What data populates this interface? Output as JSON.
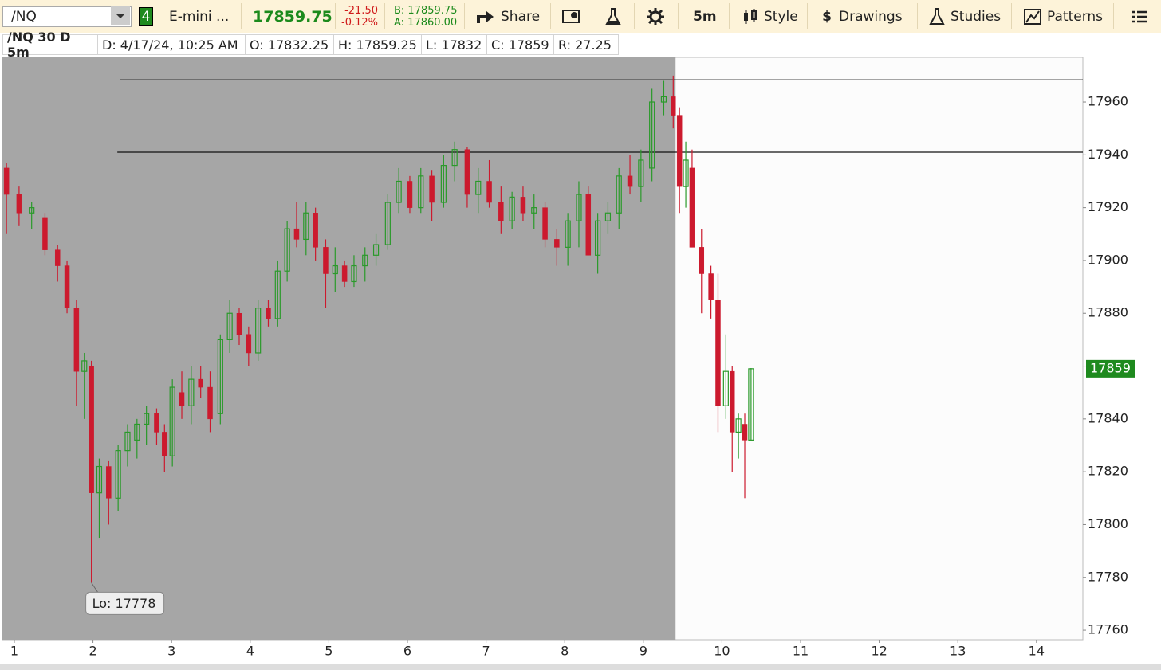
{
  "toolbar": {
    "symbol": "/NQ",
    "link_group": "4",
    "description": "E-mini ...",
    "last": "17859.75",
    "change": "-21.50",
    "change_pct": "-0.12%",
    "bid": "B: 17859.75",
    "ask": "A: 17860.00",
    "share": "Share",
    "timeframe": "5m",
    "style": "Style",
    "drawings": "Drawings",
    "studies": "Studies",
    "patterns": "Patterns"
  },
  "infobar": {
    "chart_name": "/NQ 30 D 5m",
    "date": "D: 4/17/24, 10:25 AM",
    "open": "O: 17832.25",
    "high": "H: 17859.25",
    "low": "L: 17832",
    "close": "C: 17859",
    "range": "R: 27.25"
  },
  "chart_data": {
    "type": "candlestick",
    "up_color": "#2a9a2a",
    "down_color": "#cc1a2e",
    "x": [
      0.9,
      1.06,
      1.22,
      1.39,
      1.55,
      1.67,
      1.79,
      1.89,
      1.98,
      2.08,
      2.2,
      2.32,
      2.44,
      2.56,
      2.68,
      2.81,
      2.91,
      3.01,
      3.13,
      3.25,
      3.37,
      3.49,
      3.62,
      3.74,
      3.86,
      3.98,
      4.1,
      4.23,
      4.35,
      4.47,
      4.59,
      4.71,
      4.83,
      4.96,
      5.08,
      5.2,
      5.32,
      5.46,
      5.6,
      5.75,
      5.89,
      6.03,
      6.17,
      6.31,
      6.46,
      6.6,
      6.76,
      6.9,
      7.04,
      7.19,
      7.33,
      7.47,
      7.61,
      7.75,
      7.9,
      8.04,
      8.18,
      8.3,
      8.42,
      8.55,
      8.69,
      8.83,
      8.97,
      9.11,
      9.26,
      9.38,
      9.46,
      9.54,
      9.62,
      9.74,
      9.86,
      9.95,
      10.05,
      10.13,
      10.21,
      10.29,
      10.37
    ],
    "open": [
      17935,
      17925,
      17918,
      17916,
      17904,
      17898,
      17882,
      17858,
      17860,
      17812,
      17822,
      17810,
      17828,
      17832,
      17838,
      17842,
      17835,
      17826,
      17850,
      17845,
      17855,
      17852,
      17842,
      17870,
      17880,
      17872,
      17865,
      17882,
      17878,
      17896,
      17912,
      17908,
      17918,
      17905,
      17895,
      17898,
      17892,
      17898,
      17902,
      17906,
      17922,
      17930,
      17920,
      17932,
      17922,
      17936,
      17942,
      17925,
      17930,
      17922,
      17915,
      17924,
      17918,
      17920,
      17908,
      17905,
      17915,
      17925,
      17902,
      17915,
      17918,
      17932,
      17928,
      17935,
      17960,
      17962,
      17955,
      17928,
      17935,
      17905,
      17895,
      17885,
      17845,
      17858,
      17835,
      17838,
      17832
    ],
    "high": [
      17937,
      17928,
      17922,
      17918,
      17906,
      17900,
      17885,
      17865,
      17862,
      17825,
      17824,
      17830,
      17838,
      17840,
      17845,
      17844,
      17838,
      17855,
      17858,
      17860,
      17860,
      17858,
      17872,
      17885,
      17882,
      17875,
      17885,
      17885,
      17900,
      17915,
      17922,
      17922,
      17920,
      17908,
      17905,
      17900,
      17902,
      17905,
      17910,
      17925,
      17935,
      17932,
      17935,
      17934,
      17940,
      17945,
      17943,
      17935,
      17938,
      17928,
      17926,
      17928,
      17925,
      17922,
      17912,
      17918,
      17930,
      17928,
      17918,
      17922,
      17935,
      17940,
      17942,
      17965,
      17968,
      17970,
      17958,
      17945,
      17942,
      17912,
      17898,
      17895,
      17872,
      17860,
      17842,
      17842,
      17859.25
    ],
    "low": [
      17910,
      17913,
      17912,
      17902,
      17892,
      17880,
      17845,
      17840,
      17778,
      17795,
      17800,
      17805,
      17822,
      17825,
      17830,
      17830,
      17820,
      17822,
      17840,
      17838,
      17848,
      17835,
      17838,
      17865,
      17868,
      17860,
      17862,
      17875,
      17875,
      17892,
      17905,
      17902,
      17900,
      17882,
      17888,
      17890,
      17890,
      17892,
      17898,
      17904,
      17918,
      17918,
      17918,
      17915,
      17920,
      17930,
      17920,
      17918,
      17920,
      17910,
      17912,
      17915,
      17912,
      17905,
      17898,
      17898,
      17905,
      17902,
      17895,
      17910,
      17912,
      17925,
      17922,
      17930,
      17955,
      17950,
      17918,
      17920,
      17905,
      17880,
      17878,
      17835,
      17840,
      17820,
      17825,
      17810,
      17832
    ],
    "close": [
      17925,
      17918,
      17920,
      17904,
      17898,
      17882,
      17858,
      17862,
      17812,
      17822,
      17810,
      17828,
      17835,
      17838,
      17842,
      17835,
      17826,
      17852,
      17845,
      17855,
      17852,
      17840,
      17870,
      17880,
      17872,
      17865,
      17882,
      17878,
      17896,
      17912,
      17908,
      17918,
      17905,
      17895,
      17898,
      17892,
      17898,
      17902,
      17906,
      17922,
      17930,
      17920,
      17932,
      17922,
      17936,
      17942,
      17925,
      17930,
      17922,
      17915,
      17924,
      17918,
      17920,
      17908,
      17905,
      17915,
      17925,
      17902,
      17915,
      17918,
      17932,
      17928,
      17938,
      17960,
      17962,
      17955,
      17928,
      17938,
      17905,
      17895,
      17885,
      17845,
      17858,
      17835,
      17840,
      17832,
      17859
    ],
    "xlim": [
      0.848,
      14.59
    ],
    "xticks": [
      1,
      2,
      3,
      4,
      5,
      6,
      7,
      8,
      9,
      10,
      11,
      12,
      13,
      14
    ],
    "ylim": [
      17756.4,
      17976.9
    ],
    "yticks": [
      17760,
      17780,
      17800,
      17820,
      17840,
      17860,
      17880,
      17900,
      17920,
      17940,
      17960
    ],
    "shaded_xlim": [
      0.848,
      9.41
    ],
    "hlines": [
      {
        "value": 17968.4,
        "from": 2.34
      },
      {
        "value": 17941,
        "from": 2.31
      }
    ],
    "low_annotation": {
      "value": 17778,
      "x": 1.98,
      "label": "Lo: 17778"
    },
    "last_price": 17859
  }
}
